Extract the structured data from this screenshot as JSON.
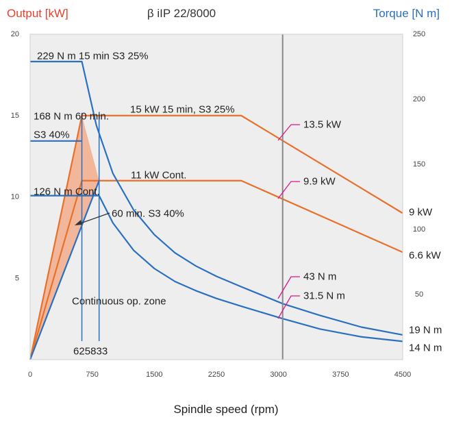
{
  "chart_data": {
    "type": "line",
    "title": "β iIP 22/8000",
    "xlabel": "Spindle speed (rpm)",
    "ylabel_left": "Output [kW]",
    "ylabel_right": "Torque [N m]",
    "xlim": [
      0,
      4500
    ],
    "ylim_left": [
      0,
      20
    ],
    "ylim_right": [
      0,
      250
    ],
    "x_ticks": [
      "0",
      "750",
      "1500",
      "2250",
      "3000",
      "3750",
      "4500"
    ],
    "x_tick_values": [
      0,
      750,
      1500,
      2250,
      3000,
      3750,
      4500
    ],
    "y_left_ticks": [
      "5",
      "10",
      "15",
      "20"
    ],
    "y_left_tick_values": [
      5,
      10,
      15,
      20
    ],
    "y_right_ticks": [
      "50",
      "100",
      "150",
      "200",
      "250"
    ],
    "y_right_tick_values": [
      50,
      100,
      150,
      200,
      250
    ],
    "vertical_line_x": 3050,
    "series": [
      {
        "color": "#e8702a",
        "axis": "left",
        "unit": "kW",
        "x": [
          0,
          625,
          2550,
          4500
        ],
        "y": [
          0,
          15,
          15,
          9
        ]
      },
      {
        "color": "#e8702a",
        "axis": "left",
        "unit": "kW",
        "x": [
          0,
          625,
          2550,
          4500
        ],
        "y": [
          0,
          11,
          11,
          6.6
        ]
      },
      {
        "color": "#2a6fc0",
        "axis": "left",
        "unit": "kW",
        "x": [
          0,
          833
        ],
        "y": [
          0,
          11
        ]
      },
      {
        "color": "#2a6fc0",
        "axis": "right",
        "unit": "N m",
        "x": [
          0,
          625,
          800,
          1000,
          1250,
          1500,
          1750,
          2000,
          2250,
          2550,
          3050,
          3500,
          4000,
          4500
        ],
        "y": [
          229,
          229,
          180,
          143,
          115,
          96,
          82,
          72,
          64,
          56,
          43,
          34,
          25,
          19
        ]
      },
      {
        "color": "#2a6fc0",
        "axis": "right",
        "unit": "N m",
        "x": [
          0,
          625
        ],
        "y": [
          168,
          168
        ]
      },
      {
        "color": "#2a6fc0",
        "axis": "right",
        "unit": "N m",
        "x": [
          0,
          833,
          1000,
          1250,
          1500,
          1750,
          2000,
          2250,
          2550,
          3050,
          3500,
          4000,
          4500
        ],
        "y": [
          126,
          126,
          105,
          84,
          70,
          60,
          53,
          47,
          41,
          31.5,
          23.5,
          17.5,
          14
        ]
      }
    ],
    "shaded_region": {
      "color": "#f2b79a",
      "x": [
        0,
        625,
        833
      ],
      "y": [
        0,
        15,
        11
      ]
    },
    "speed_markers": [
      {
        "x": 625,
        "label": "625"
      },
      {
        "x": 833,
        "label": "833"
      }
    ],
    "annotations": {
      "a1": "229 N m 15 min S3 25%",
      "a2": "168 N m 60 min.",
      "a3": "S3 40%",
      "a4": "15 kW 15 min, S3 25%",
      "a5": "11 kW Cont.",
      "a6": "126 N m Cont.",
      "a7": "60 min. S3 40%",
      "a8": "Continuous op. zone",
      "c1": "13.5 kW",
      "c2": "9.9 kW",
      "c3": "43 N m",
      "c4": "31.5 N m",
      "e1": "9 kW",
      "e2": "6.6 kW",
      "e3": "19 N m",
      "e4": "14 N m"
    },
    "colors": {
      "output": "#e8402a",
      "torque": "#2a6fc0",
      "callout": "#e0148a"
    },
    "grid": false
  }
}
